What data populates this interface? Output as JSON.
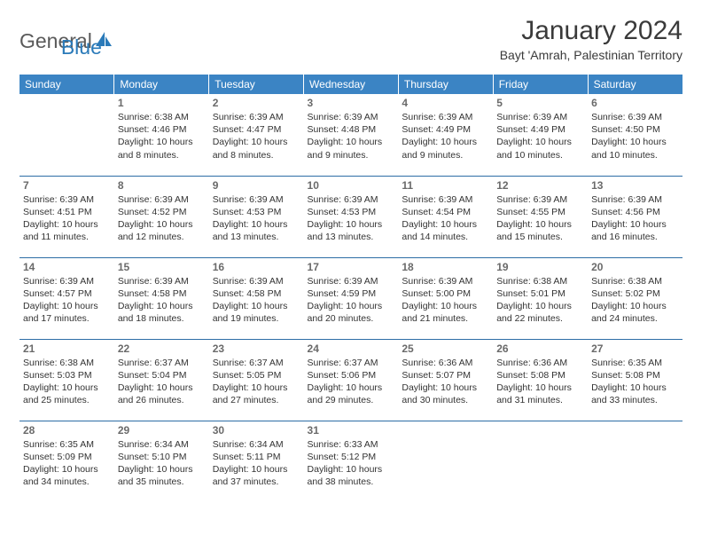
{
  "logo": {
    "text1": "General",
    "text2": "Blue"
  },
  "title": "January 2024",
  "location": "Bayt 'Amrah, Palestinian Territory",
  "colors": {
    "header_bg": "#3b84c4",
    "header_text": "#ffffff",
    "row_border": "#2d6da6",
    "daynum": "#6a6a6a",
    "body_text": "#333333",
    "logo_gray": "#5a5a5a",
    "logo_blue": "#2a7ab9"
  },
  "weekdays": [
    "Sunday",
    "Monday",
    "Tuesday",
    "Wednesday",
    "Thursday",
    "Friday",
    "Saturday"
  ],
  "weeks": [
    [
      null,
      {
        "n": "1",
        "sr": "6:38 AM",
        "ss": "4:46 PM",
        "dlh": "10",
        "dlm": "8"
      },
      {
        "n": "2",
        "sr": "6:39 AM",
        "ss": "4:47 PM",
        "dlh": "10",
        "dlm": "8"
      },
      {
        "n": "3",
        "sr": "6:39 AM",
        "ss": "4:48 PM",
        "dlh": "10",
        "dlm": "9"
      },
      {
        "n": "4",
        "sr": "6:39 AM",
        "ss": "4:49 PM",
        "dlh": "10",
        "dlm": "9"
      },
      {
        "n": "5",
        "sr": "6:39 AM",
        "ss": "4:49 PM",
        "dlh": "10",
        "dlm": "10"
      },
      {
        "n": "6",
        "sr": "6:39 AM",
        "ss": "4:50 PM",
        "dlh": "10",
        "dlm": "10"
      }
    ],
    [
      {
        "n": "7",
        "sr": "6:39 AM",
        "ss": "4:51 PM",
        "dlh": "10",
        "dlm": "11"
      },
      {
        "n": "8",
        "sr": "6:39 AM",
        "ss": "4:52 PM",
        "dlh": "10",
        "dlm": "12"
      },
      {
        "n": "9",
        "sr": "6:39 AM",
        "ss": "4:53 PM",
        "dlh": "10",
        "dlm": "13"
      },
      {
        "n": "10",
        "sr": "6:39 AM",
        "ss": "4:53 PM",
        "dlh": "10",
        "dlm": "13"
      },
      {
        "n": "11",
        "sr": "6:39 AM",
        "ss": "4:54 PM",
        "dlh": "10",
        "dlm": "14"
      },
      {
        "n": "12",
        "sr": "6:39 AM",
        "ss": "4:55 PM",
        "dlh": "10",
        "dlm": "15"
      },
      {
        "n": "13",
        "sr": "6:39 AM",
        "ss": "4:56 PM",
        "dlh": "10",
        "dlm": "16"
      }
    ],
    [
      {
        "n": "14",
        "sr": "6:39 AM",
        "ss": "4:57 PM",
        "dlh": "10",
        "dlm": "17"
      },
      {
        "n": "15",
        "sr": "6:39 AM",
        "ss": "4:58 PM",
        "dlh": "10",
        "dlm": "18"
      },
      {
        "n": "16",
        "sr": "6:39 AM",
        "ss": "4:58 PM",
        "dlh": "10",
        "dlm": "19"
      },
      {
        "n": "17",
        "sr": "6:39 AM",
        "ss": "4:59 PM",
        "dlh": "10",
        "dlm": "20"
      },
      {
        "n": "18",
        "sr": "6:39 AM",
        "ss": "5:00 PM",
        "dlh": "10",
        "dlm": "21"
      },
      {
        "n": "19",
        "sr": "6:38 AM",
        "ss": "5:01 PM",
        "dlh": "10",
        "dlm": "22"
      },
      {
        "n": "20",
        "sr": "6:38 AM",
        "ss": "5:02 PM",
        "dlh": "10",
        "dlm": "24"
      }
    ],
    [
      {
        "n": "21",
        "sr": "6:38 AM",
        "ss": "5:03 PM",
        "dlh": "10",
        "dlm": "25"
      },
      {
        "n": "22",
        "sr": "6:37 AM",
        "ss": "5:04 PM",
        "dlh": "10",
        "dlm": "26"
      },
      {
        "n": "23",
        "sr": "6:37 AM",
        "ss": "5:05 PM",
        "dlh": "10",
        "dlm": "27"
      },
      {
        "n": "24",
        "sr": "6:37 AM",
        "ss": "5:06 PM",
        "dlh": "10",
        "dlm": "29"
      },
      {
        "n": "25",
        "sr": "6:36 AM",
        "ss": "5:07 PM",
        "dlh": "10",
        "dlm": "30"
      },
      {
        "n": "26",
        "sr": "6:36 AM",
        "ss": "5:08 PM",
        "dlh": "10",
        "dlm": "31"
      },
      {
        "n": "27",
        "sr": "6:35 AM",
        "ss": "5:08 PM",
        "dlh": "10",
        "dlm": "33"
      }
    ],
    [
      {
        "n": "28",
        "sr": "6:35 AM",
        "ss": "5:09 PM",
        "dlh": "10",
        "dlm": "34"
      },
      {
        "n": "29",
        "sr": "6:34 AM",
        "ss": "5:10 PM",
        "dlh": "10",
        "dlm": "35"
      },
      {
        "n": "30",
        "sr": "6:34 AM",
        "ss": "5:11 PM",
        "dlh": "10",
        "dlm": "37"
      },
      {
        "n": "31",
        "sr": "6:33 AM",
        "ss": "5:12 PM",
        "dlh": "10",
        "dlm": "38"
      },
      null,
      null,
      null
    ]
  ],
  "labels": {
    "sunrise": "Sunrise:",
    "sunset": "Sunset:",
    "daylight_pre": "Daylight:",
    "hours": "hours",
    "and": "and",
    "minutes": "minutes."
  }
}
